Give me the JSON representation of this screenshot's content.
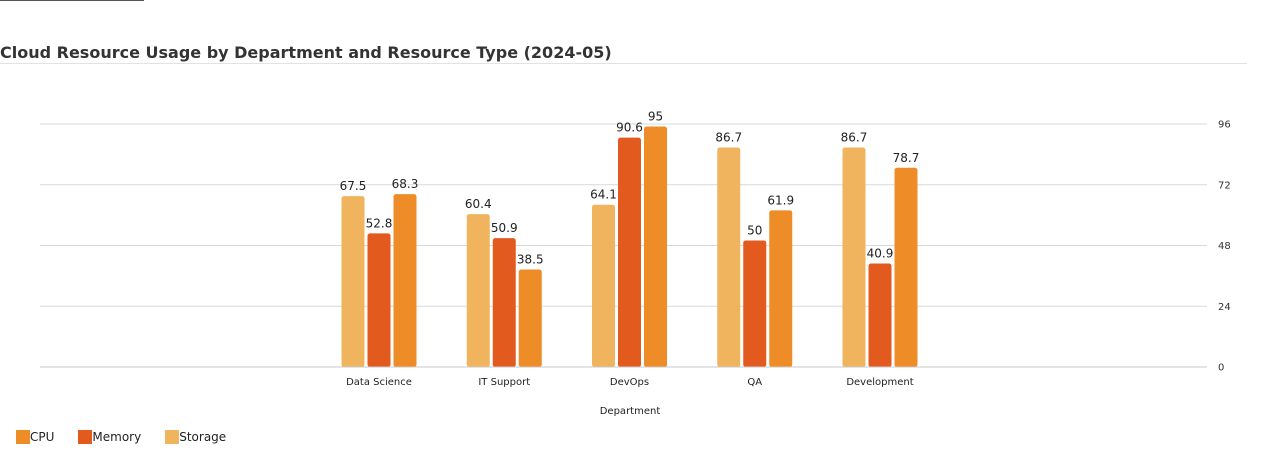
{
  "chart_data": {
    "type": "bar",
    "title": "Cloud Resource Usage by Department and Resource Type (2024-05)",
    "xlabel": "Department",
    "ylabel": "",
    "categories": [
      "Data Science",
      "IT Support",
      "DevOps",
      "QA",
      "Development"
    ],
    "series": [
      {
        "name": "Storage",
        "color": "#F0B45E",
        "values": [
          67.5,
          60.4,
          64.1,
          86.7,
          86.7
        ]
      },
      {
        "name": "Memory",
        "color": "#E35A1E",
        "values": [
          52.8,
          50.9,
          90.6,
          50,
          40.9
        ]
      },
      {
        "name": "CPU",
        "color": "#EE8C28",
        "values": [
          68.3,
          38.5,
          95,
          61.9,
          78.7
        ]
      }
    ],
    "ylim": [
      0,
      96
    ],
    "yticks": [
      "0",
      "24",
      "48",
      "72",
      "96"
    ],
    "grid": true,
    "y_axis_side": "right",
    "legend_placement": "bottom-left",
    "legend": [
      {
        "name": "CPU",
        "color": "#EE8C28"
      },
      {
        "name": "Memory",
        "color": "#E35A1E"
      },
      {
        "name": "Storage",
        "color": "#F0B45E"
      }
    ]
  }
}
